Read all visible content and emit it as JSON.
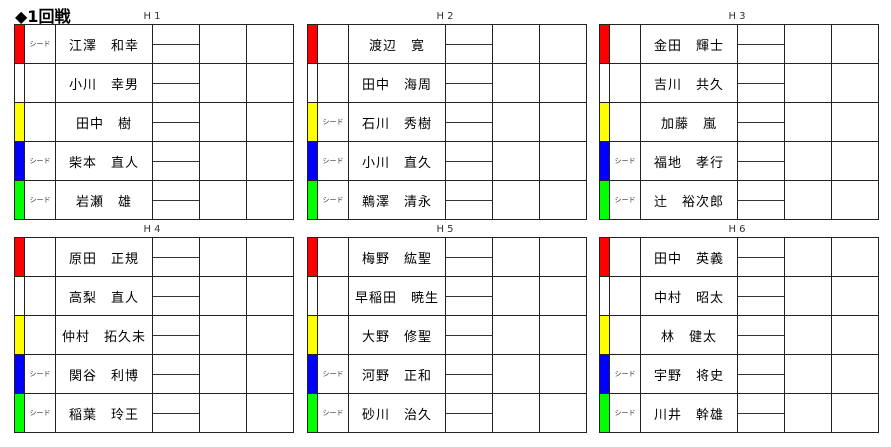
{
  "title": "◆1回戦",
  "seed_label": "シード",
  "groups": [
    {
      "label": "H 1",
      "players": [
        {
          "color": "#ff0000",
          "seed": true,
          "name": "江澤　和幸"
        },
        {
          "color": "#ffffff",
          "seed": false,
          "name": "小川　幸男"
        },
        {
          "color": "#ffff00",
          "seed": false,
          "name": "田中　樹"
        },
        {
          "color": "#0000ff",
          "seed": true,
          "name": "柴本　直人"
        },
        {
          "color": "#00ff00",
          "seed": true,
          "name": "岩瀬　雄"
        }
      ]
    },
    {
      "label": "H 2",
      "players": [
        {
          "color": "#ff0000",
          "seed": false,
          "name": "渡辺　寛"
        },
        {
          "color": "#ffffff",
          "seed": false,
          "name": "田中　海周"
        },
        {
          "color": "#ffff00",
          "seed": true,
          "name": "石川　秀樹"
        },
        {
          "color": "#0000ff",
          "seed": true,
          "name": "小川　直久"
        },
        {
          "color": "#00ff00",
          "seed": true,
          "name": "鵜澤　清永"
        }
      ]
    },
    {
      "label": "H 3",
      "players": [
        {
          "color": "#ff0000",
          "seed": false,
          "name": "金田　輝士"
        },
        {
          "color": "#ffffff",
          "seed": false,
          "name": "吉川　共久"
        },
        {
          "color": "#ffff00",
          "seed": false,
          "name": "加藤　嵐"
        },
        {
          "color": "#0000ff",
          "seed": true,
          "name": "福地　孝行"
        },
        {
          "color": "#00ff00",
          "seed": true,
          "name": "辻　裕次郎"
        }
      ]
    },
    {
      "label": "H 4",
      "players": [
        {
          "color": "#ff0000",
          "seed": false,
          "name": "原田　正規"
        },
        {
          "color": "#ffffff",
          "seed": false,
          "name": "高梨　直人"
        },
        {
          "color": "#ffff00",
          "seed": false,
          "name": "仲村　拓久未"
        },
        {
          "color": "#0000ff",
          "seed": true,
          "name": "関谷　利博"
        },
        {
          "color": "#00ff00",
          "seed": true,
          "name": "稲葉　玲王"
        }
      ]
    },
    {
      "label": "H 5",
      "players": [
        {
          "color": "#ff0000",
          "seed": false,
          "name": "梅野　紘聖"
        },
        {
          "color": "#ffffff",
          "seed": false,
          "name": "早稲田　暁生"
        },
        {
          "color": "#ffff00",
          "seed": false,
          "name": "大野　修聖"
        },
        {
          "color": "#0000ff",
          "seed": true,
          "name": "河野　正和"
        },
        {
          "color": "#00ff00",
          "seed": true,
          "name": "砂川　治久"
        }
      ]
    },
    {
      "label": "H 6",
      "players": [
        {
          "color": "#ff0000",
          "seed": false,
          "name": "田中　英義"
        },
        {
          "color": "#ffffff",
          "seed": false,
          "name": "中村　昭太"
        },
        {
          "color": "#ffff00",
          "seed": false,
          "name": "林　健太"
        },
        {
          "color": "#0000ff",
          "seed": true,
          "name": "宇野　将史"
        },
        {
          "color": "#00ff00",
          "seed": true,
          "name": "川井　幹雄"
        }
      ]
    }
  ]
}
